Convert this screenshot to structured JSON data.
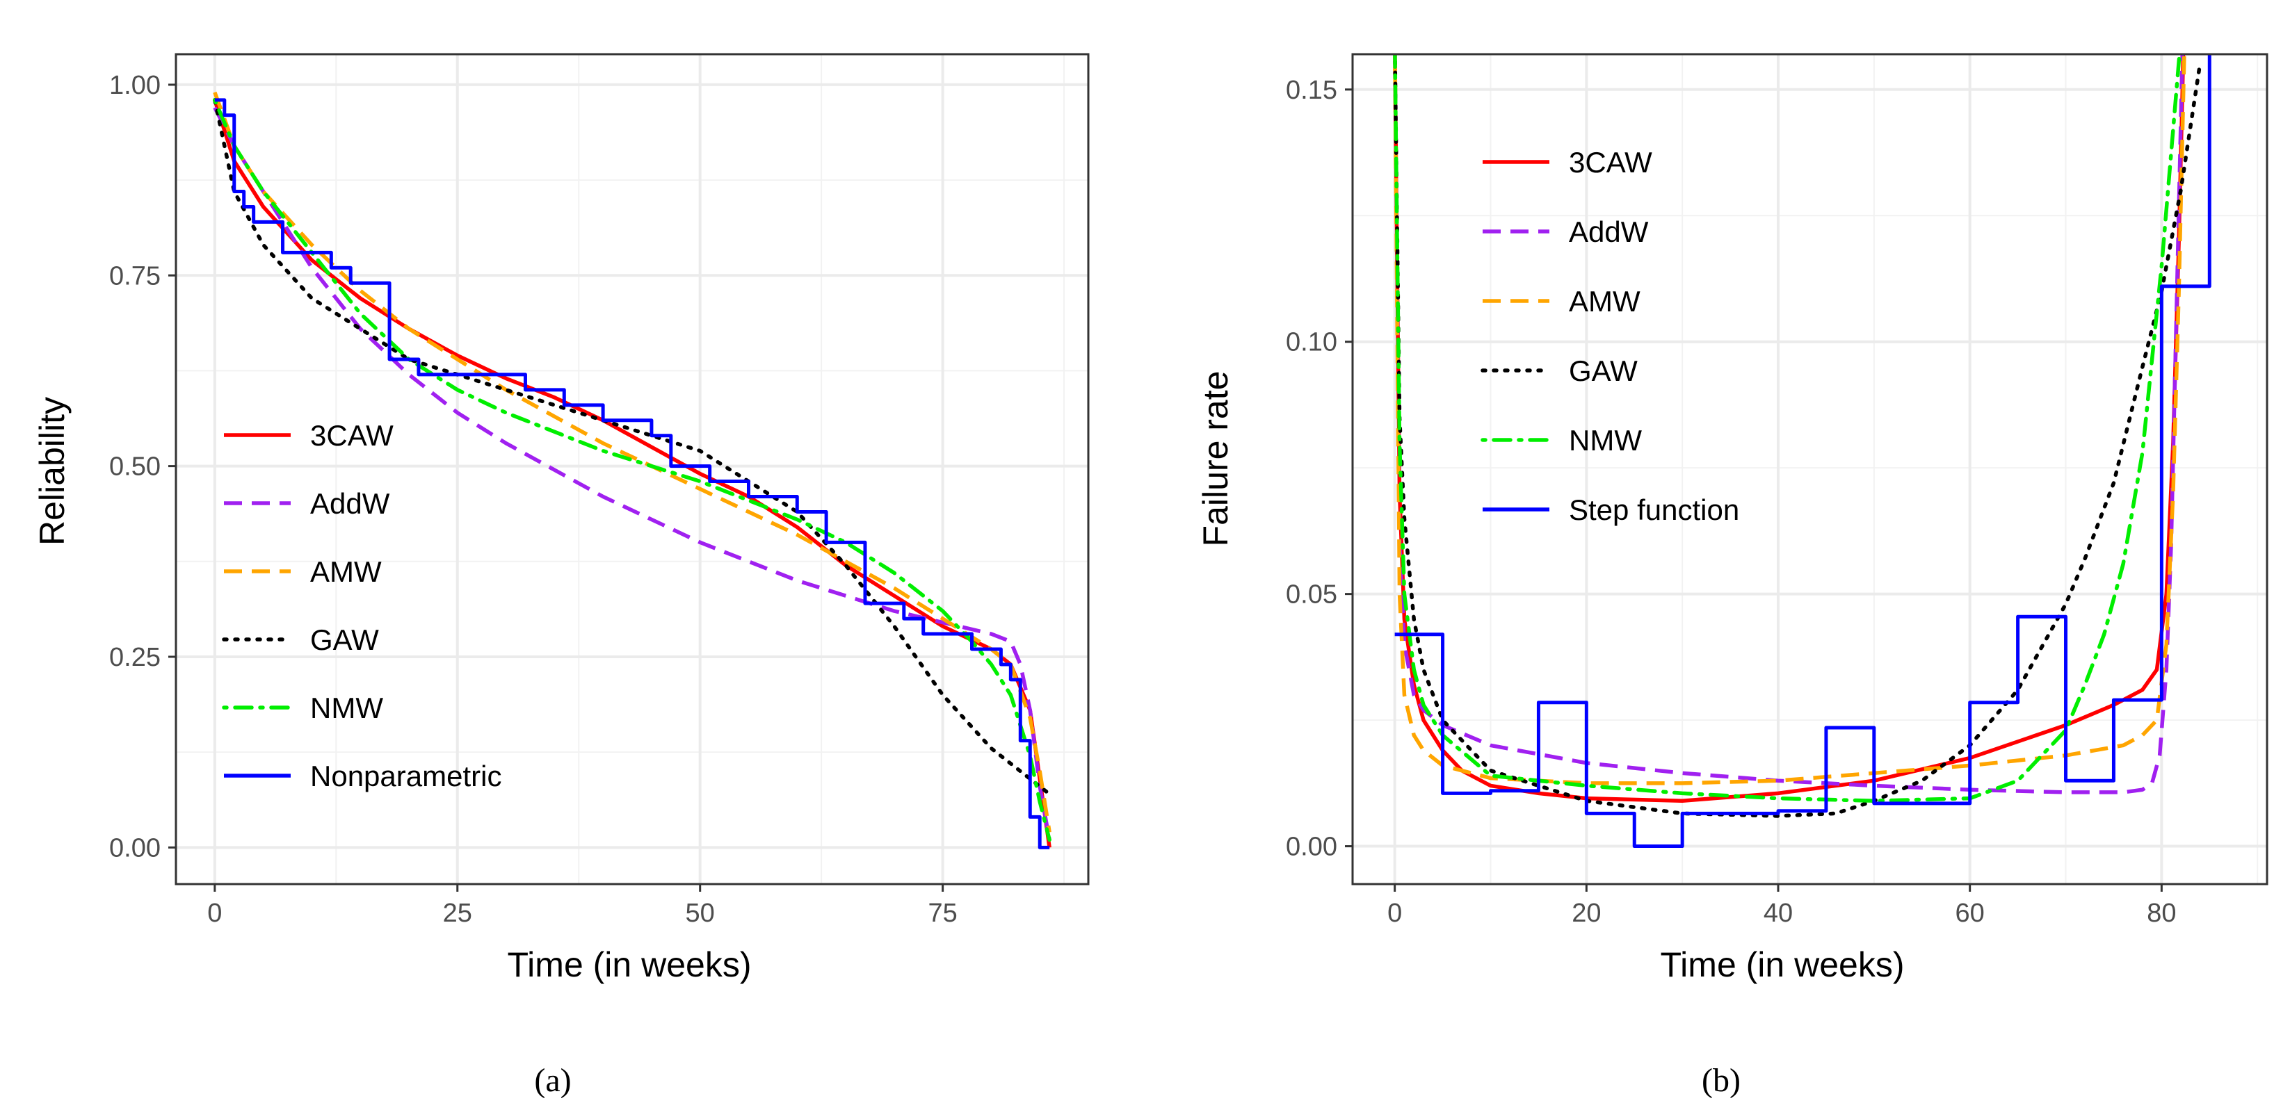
{
  "chart_data": [
    {
      "type": "line",
      "panel": "(a)",
      "xlabel": "Time (in weeks)",
      "ylabel": "Reliability",
      "xlim": [
        -4,
        90
      ],
      "ylim": [
        -0.048,
        1.04
      ],
      "xticks": [
        0,
        25,
        50,
        75
      ],
      "yticks": [
        0.0,
        0.25,
        0.5,
        0.75,
        1.0
      ],
      "xtick_labels": [
        "0",
        "25",
        "50",
        "75"
      ],
      "ytick_labels": [
        "0.00",
        "0.25",
        "0.50",
        "0.75",
        "1.00"
      ],
      "grid": true,
      "legend_position": "left-middle",
      "series": [
        {
          "name": "3CAW",
          "color": "#ff0000",
          "style": "solid",
          "x": [
            0,
            2,
            5,
            10,
            15,
            20,
            25,
            30,
            35,
            40,
            45,
            50,
            55,
            60,
            65,
            70,
            75,
            80,
            82,
            84,
            85,
            86
          ],
          "y": [
            0.98,
            0.9,
            0.84,
            0.77,
            0.72,
            0.68,
            0.645,
            0.615,
            0.59,
            0.56,
            0.525,
            0.49,
            0.46,
            0.42,
            0.37,
            0.33,
            0.29,
            0.26,
            0.24,
            0.18,
            0.09,
            0.0
          ]
        },
        {
          "name": "AddW",
          "color": "#a020f0",
          "style": "dashed",
          "x": [
            0,
            2,
            5,
            10,
            15,
            20,
            25,
            30,
            40,
            50,
            60,
            70,
            75,
            80,
            82,
            83,
            84,
            85,
            86
          ],
          "y": [
            0.97,
            0.92,
            0.86,
            0.76,
            0.68,
            0.62,
            0.57,
            0.53,
            0.46,
            0.4,
            0.35,
            0.31,
            0.295,
            0.28,
            0.27,
            0.24,
            0.18,
            0.08,
            0.01
          ]
        },
        {
          "name": "AMW",
          "color": "#ffa500",
          "style": "dashed",
          "x": [
            0,
            2,
            5,
            10,
            15,
            20,
            25,
            30,
            40,
            50,
            60,
            70,
            75,
            80,
            82,
            84,
            85,
            86
          ],
          "y": [
            0.99,
            0.92,
            0.86,
            0.79,
            0.73,
            0.68,
            0.64,
            0.6,
            0.53,
            0.47,
            0.41,
            0.34,
            0.3,
            0.26,
            0.24,
            0.17,
            0.1,
            0.02
          ]
        },
        {
          "name": "GAW",
          "color": "#000000",
          "style": "dotted",
          "x": [
            0,
            2,
            5,
            10,
            15,
            20,
            25,
            30,
            40,
            50,
            55,
            60,
            65,
            70,
            75,
            80,
            84,
            86
          ],
          "y": [
            0.98,
            0.86,
            0.79,
            0.72,
            0.68,
            0.64,
            0.62,
            0.6,
            0.56,
            0.52,
            0.48,
            0.44,
            0.37,
            0.29,
            0.2,
            0.13,
            0.09,
            0.07
          ]
        },
        {
          "name": "NMW",
          "color": "#00ee00",
          "style": "dotdash",
          "x": [
            0,
            2,
            5,
            10,
            15,
            20,
            25,
            30,
            40,
            50,
            60,
            65,
            70,
            75,
            78,
            80,
            82,
            84,
            85,
            86
          ],
          "y": [
            0.98,
            0.92,
            0.86,
            0.78,
            0.7,
            0.64,
            0.6,
            0.57,
            0.52,
            0.48,
            0.43,
            0.4,
            0.36,
            0.31,
            0.27,
            0.24,
            0.2,
            0.12,
            0.06,
            0.01
          ]
        },
        {
          "name": "Nonparametric",
          "color": "#0000ff",
          "style": "step",
          "x": [
            0,
            1,
            2,
            3,
            4,
            7,
            12,
            14,
            18,
            21,
            32,
            36,
            40,
            45,
            47,
            51,
            55,
            60,
            63,
            67,
            71,
            73,
            76,
            78,
            81,
            82,
            83,
            84,
            85,
            86
          ],
          "y": [
            0.98,
            0.96,
            0.86,
            0.84,
            0.82,
            0.78,
            0.76,
            0.74,
            0.64,
            0.62,
            0.6,
            0.58,
            0.56,
            0.54,
            0.5,
            0.48,
            0.46,
            0.44,
            0.4,
            0.32,
            0.3,
            0.28,
            0.28,
            0.26,
            0.24,
            0.22,
            0.14,
            0.04,
            0.0,
            0.0
          ]
        }
      ]
    },
    {
      "type": "line",
      "panel": "(b)",
      "xlabel": "Time (in weeks)",
      "ylabel": "Failure rate",
      "xlim": [
        -4.4,
        91
      ],
      "ylim": [
        -0.0075,
        0.157
      ],
      "xticks": [
        0,
        20,
        40,
        60,
        80
      ],
      "yticks": [
        0.0,
        0.05,
        0.1,
        0.15
      ],
      "xtick_labels": [
        "0",
        "20",
        "40",
        "60",
        "80"
      ],
      "ytick_labels": [
        "0.00",
        "0.05",
        "0.10",
        "0.15"
      ],
      "grid": true,
      "legend_position": "top-left",
      "series": [
        {
          "name": "3CAW",
          "color": "#ff0000",
          "style": "solid",
          "x": [
            0,
            0.5,
            1,
            2,
            3,
            5,
            7,
            10,
            15,
            20,
            30,
            40,
            50,
            60,
            70,
            75,
            78,
            79.5,
            80.5,
            81.2,
            81.8,
            82.3
          ],
          "y": [
            0.16,
            0.07,
            0.045,
            0.032,
            0.025,
            0.019,
            0.015,
            0.012,
            0.0105,
            0.0095,
            0.009,
            0.0105,
            0.013,
            0.0175,
            0.024,
            0.028,
            0.031,
            0.035,
            0.05,
            0.08,
            0.12,
            0.16
          ]
        },
        {
          "name": "AddW",
          "color": "#a020f0",
          "style": "dashed",
          "x": [
            0,
            0.5,
            1,
            2,
            3,
            5,
            10,
            20,
            30,
            40,
            50,
            60,
            70,
            76,
            78,
            79,
            79.8,
            80.5,
            81,
            81.6,
            82.2
          ],
          "y": [
            0.16,
            0.06,
            0.04,
            0.03,
            0.027,
            0.024,
            0.02,
            0.0165,
            0.0145,
            0.013,
            0.012,
            0.0112,
            0.0107,
            0.0107,
            0.0112,
            0.0125,
            0.018,
            0.035,
            0.06,
            0.11,
            0.16
          ]
        },
        {
          "name": "AMW",
          "color": "#ffa500",
          "style": "dashed",
          "x": [
            0,
            0.5,
            1,
            2,
            3,
            5,
            10,
            20,
            30,
            40,
            50,
            60,
            70,
            76,
            78,
            79.5,
            80.5,
            81.2,
            81.8,
            82.4
          ],
          "y": [
            0.16,
            0.05,
            0.03,
            0.022,
            0.019,
            0.016,
            0.0135,
            0.0125,
            0.0125,
            0.013,
            0.0145,
            0.016,
            0.018,
            0.02,
            0.022,
            0.025,
            0.04,
            0.07,
            0.11,
            0.16
          ]
        },
        {
          "name": "GAW",
          "color": "#000000",
          "style": "dotted",
          "x": [
            0,
            0.5,
            1,
            2,
            3,
            5,
            10,
            20,
            30,
            40,
            46,
            50,
            55,
            60,
            65,
            70,
            72,
            75,
            78,
            80,
            82,
            84
          ],
          "y": [
            0.16,
            0.085,
            0.065,
            0.045,
            0.035,
            0.025,
            0.015,
            0.009,
            0.0065,
            0.006,
            0.0065,
            0.009,
            0.013,
            0.02,
            0.031,
            0.048,
            0.057,
            0.072,
            0.095,
            0.11,
            0.13,
            0.155
          ]
        },
        {
          "name": "NMW",
          "color": "#00ee00",
          "style": "dotdash",
          "x": [
            0,
            0.5,
            1,
            2,
            3,
            5,
            10,
            20,
            30,
            40,
            50,
            60,
            65,
            70,
            72,
            74,
            76,
            78,
            80,
            82
          ],
          "y": [
            0.16,
            0.08,
            0.05,
            0.035,
            0.028,
            0.022,
            0.014,
            0.012,
            0.0105,
            0.0095,
            0.009,
            0.0095,
            0.013,
            0.023,
            0.032,
            0.042,
            0.056,
            0.078,
            0.115,
            0.16
          ]
        },
        {
          "name": "Step function",
          "color": "#0000ff",
          "style": "step",
          "x": [
            0,
            5,
            10,
            15,
            20,
            25,
            30,
            35,
            40,
            45,
            50,
            55,
            60,
            65,
            70,
            75,
            80,
            85,
            85
          ],
          "y": [
            0.042,
            0.0105,
            0.011,
            0.0285,
            0.0065,
            0.0,
            0.0065,
            0.0065,
            0.007,
            0.0235,
            0.0085,
            0.0085,
            0.0285,
            0.0455,
            0.013,
            0.029,
            0.111,
            0.16,
            0.16
          ]
        }
      ]
    }
  ]
}
